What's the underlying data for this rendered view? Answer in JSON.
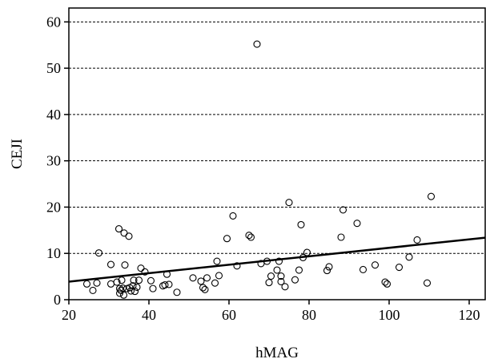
{
  "chart_data": {
    "type": "scatter",
    "title": "",
    "xlabel": "hMAG",
    "ylabel": "CEJI",
    "xlim": [
      20,
      124
    ],
    "ylim": [
      0,
      63
    ],
    "xticks": [
      20,
      40,
      60,
      80,
      100,
      120
    ],
    "yticks": [
      0,
      10,
      20,
      30,
      40,
      50,
      60
    ],
    "xtick_labels": [
      "20",
      "40",
      "60",
      "80",
      "100",
      "120"
    ],
    "ytick_labels": [
      "0",
      "10",
      "20",
      "30",
      "40",
      "50",
      "60"
    ],
    "grid": {
      "horizontal_dashed": [
        10,
        20,
        30,
        40,
        50,
        60
      ],
      "vertical": false
    },
    "legend": "none",
    "marker": "open-circle",
    "colors": {
      "marker": "#000000",
      "line": "#000000",
      "grid": "#000000"
    },
    "regression_line": {
      "x": [
        20,
        124
      ],
      "y": [
        3.9,
        13.4
      ]
    },
    "series": [
      {
        "points": [
          [
            24.5,
            3.4
          ],
          [
            26,
            2.0
          ],
          [
            27,
            3.6
          ],
          [
            27.5,
            10.1
          ],
          [
            30.5,
            7.6
          ],
          [
            30.5,
            3.4
          ],
          [
            32,
            3.8
          ],
          [
            32.5,
            15.3
          ],
          [
            32.7,
            2.4
          ],
          [
            32.7,
            1.4
          ],
          [
            33,
            2.0
          ],
          [
            33.2,
            4.2
          ],
          [
            33.5,
            2.5
          ],
          [
            33.7,
            1.0
          ],
          [
            33.8,
            14.4
          ],
          [
            34,
            7.5
          ],
          [
            34.5,
            2.4
          ],
          [
            35,
            13.7
          ],
          [
            35.2,
            2.6
          ],
          [
            35.5,
            1.9
          ],
          [
            36,
            3.0
          ],
          [
            36.2,
            4.2
          ],
          [
            36.5,
            1.8
          ],
          [
            37,
            2.7
          ],
          [
            37.5,
            4.2
          ],
          [
            38,
            6.8
          ],
          [
            39,
            6.0
          ],
          [
            40.5,
            4.1
          ],
          [
            41,
            2.4
          ],
          [
            43.5,
            3.0
          ],
          [
            44,
            3.2
          ],
          [
            44.5,
            5.5
          ],
          [
            45,
            3.3
          ],
          [
            47,
            1.6
          ],
          [
            51,
            4.7
          ],
          [
            53,
            4.0
          ],
          [
            53.5,
            2.6
          ],
          [
            54,
            2.2
          ],
          [
            54.5,
            4.7
          ],
          [
            56.5,
            3.6
          ],
          [
            57,
            8.3
          ],
          [
            57.5,
            5.2
          ],
          [
            59.5,
            13.2
          ],
          [
            61,
            18.1
          ],
          [
            62,
            7.3
          ],
          [
            65,
            13.9
          ],
          [
            65.5,
            13.5
          ],
          [
            67,
            55.2
          ],
          [
            68,
            7.8
          ],
          [
            69.5,
            8.3
          ],
          [
            70,
            3.7
          ],
          [
            70.5,
            5.1
          ],
          [
            72,
            6.4
          ],
          [
            72.5,
            8.3
          ],
          [
            73,
            5.1
          ],
          [
            73,
            3.9
          ],
          [
            74,
            2.8
          ],
          [
            75,
            21.0
          ],
          [
            76.5,
            4.3
          ],
          [
            77.5,
            6.4
          ],
          [
            78,
            16.2
          ],
          [
            78.5,
            9.1
          ],
          [
            79.5,
            10.2
          ],
          [
            84.5,
            6.3
          ],
          [
            85,
            7.1
          ],
          [
            88,
            13.5
          ],
          [
            88.5,
            19.4
          ],
          [
            92,
            16.5
          ],
          [
            93.5,
            6.5
          ],
          [
            96.5,
            7.5
          ],
          [
            99,
            3.8
          ],
          [
            99.5,
            3.4
          ],
          [
            102.5,
            7.0
          ],
          [
            105,
            9.2
          ],
          [
            107,
            12.9
          ],
          [
            109.5,
            3.6
          ],
          [
            110.5,
            22.3
          ]
        ]
      }
    ]
  }
}
